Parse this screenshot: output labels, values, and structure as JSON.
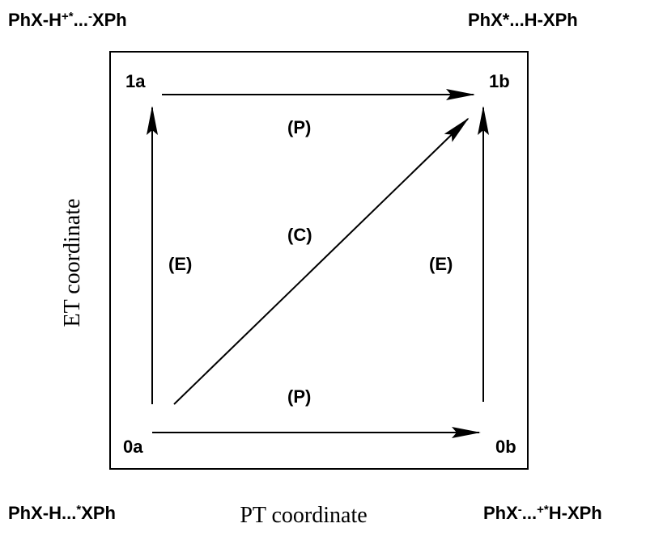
{
  "corners": {
    "top_left": [
      "PhX-H",
      "+*",
      "...",
      "-",
      "XPh"
    ],
    "top_right": [
      "PhX*...H-XPh"
    ],
    "bottom_left": [
      "PhX-H...",
      "*",
      "XPh"
    ],
    "bottom_right": [
      "PhX",
      "-",
      "...",
      "+*",
      "H-XPh"
    ]
  },
  "nodes": [
    "1a",
    "1b",
    "0a",
    "0b"
  ],
  "edges": {
    "top": "(P)",
    "diagonal": "(C)",
    "left": "(E)",
    "right": "(E)",
    "bottom": "(P)"
  },
  "axes": {
    "y": "ET coordinate",
    "x": "PT coordinate"
  }
}
